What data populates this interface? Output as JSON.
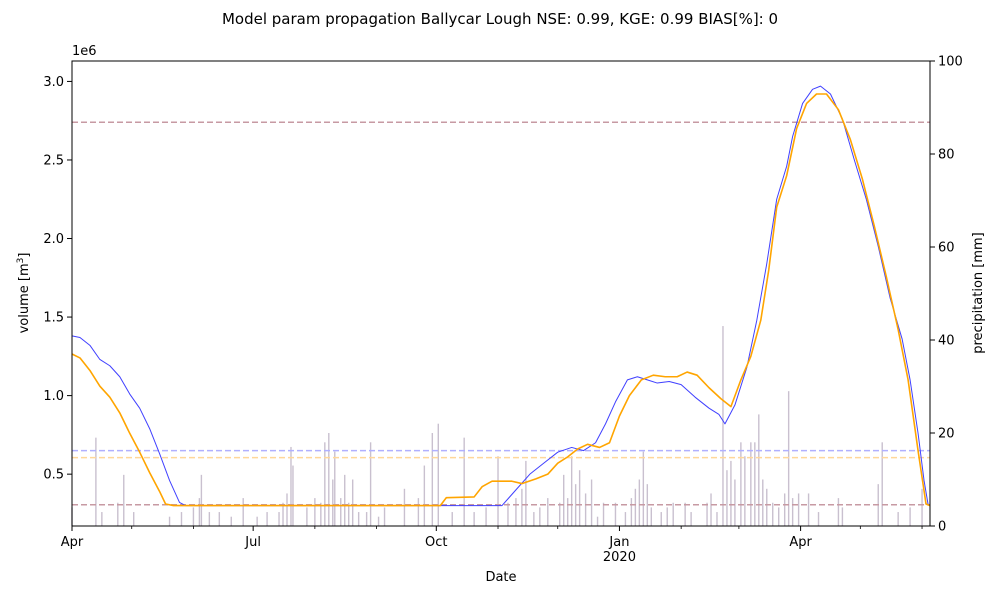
{
  "chart_data": {
    "type": "line",
    "title": "Model param propagation Ballycar Lough NSE: 0.99, KGE: 0.99 BIAS[%]: 0",
    "xlabel": "Date",
    "ylabel": "volume [m$^3$]",
    "ylabel_main": "volume [m",
    "ylabel_sup": "3",
    "ylabel_end": "]",
    "y_multiplier": "1e6",
    "y2label": "precipitation [mm]",
    "xlim": [
      "2019-04-01",
      "2020-06-05"
    ],
    "ylim": [
      170000,
      3130000
    ],
    "y2lim": [
      0,
      100
    ],
    "grid": false,
    "x_ticks": [
      {
        "date": "2019-04-01",
        "label": "Apr",
        "sub": ""
      },
      {
        "date": "2019-07-01",
        "label": "Jul",
        "sub": ""
      },
      {
        "date": "2019-10-01",
        "label": "Oct",
        "sub": ""
      },
      {
        "date": "2020-01-01",
        "label": "Jan",
        "sub": "2020"
      },
      {
        "date": "2020-04-01",
        "label": "Apr",
        "sub": ""
      }
    ],
    "y_ticks": [
      {
        "value": 500000,
        "label": "0.5"
      },
      {
        "value": 1000000,
        "label": "1.0"
      },
      {
        "value": 1500000,
        "label": "1.5"
      },
      {
        "value": 2000000,
        "label": "2.0"
      },
      {
        "value": 2500000,
        "label": "2.5"
      },
      {
        "value": 3000000,
        "label": "3.0"
      }
    ],
    "y2_ticks": [
      {
        "value": 0,
        "label": "0"
      },
      {
        "value": 20,
        "label": "20"
      },
      {
        "value": 40,
        "label": "40"
      },
      {
        "value": 60,
        "label": "60"
      },
      {
        "value": 80,
        "label": "80"
      },
      {
        "value": 100,
        "label": "100"
      }
    ],
    "series": [
      {
        "color": "#4040ff",
        "points": [
          [
            "2019-04-01",
            1380000
          ],
          [
            "2019-04-05",
            1370000
          ],
          [
            "2019-04-10",
            1320000
          ],
          [
            "2019-04-15",
            1230000
          ],
          [
            "2019-04-20",
            1190000
          ],
          [
            "2019-04-25",
            1120000
          ],
          [
            "2019-04-30",
            1010000
          ],
          [
            "2019-05-05",
            920000
          ],
          [
            "2019-05-10",
            790000
          ],
          [
            "2019-05-15",
            630000
          ],
          [
            "2019-05-20",
            460000
          ],
          [
            "2019-05-25",
            320000
          ],
          [
            "2019-05-28",
            300000
          ],
          [
            "2019-11-03",
            300000
          ],
          [
            "2019-11-10",
            400000
          ],
          [
            "2019-11-17",
            500000
          ],
          [
            "2019-11-24",
            570000
          ],
          [
            "2019-12-01",
            640000
          ],
          [
            "2019-12-08",
            670000
          ],
          [
            "2019-12-14",
            650000
          ],
          [
            "2019-12-20",
            700000
          ],
          [
            "2019-12-25",
            820000
          ],
          [
            "2019-12-30",
            960000
          ],
          [
            "2020-01-05",
            1100000
          ],
          [
            "2020-01-10",
            1120000
          ],
          [
            "2020-01-15",
            1100000
          ],
          [
            "2020-01-20",
            1080000
          ],
          [
            "2020-01-26",
            1090000
          ],
          [
            "2020-02-01",
            1070000
          ],
          [
            "2020-02-08",
            990000
          ],
          [
            "2020-02-15",
            920000
          ],
          [
            "2020-02-20",
            880000
          ],
          [
            "2020-02-23",
            820000
          ],
          [
            "2020-02-28",
            940000
          ],
          [
            "2020-03-05",
            1180000
          ],
          [
            "2020-03-10",
            1480000
          ],
          [
            "2020-03-15",
            1840000
          ],
          [
            "2020-03-20",
            2250000
          ],
          [
            "2020-03-25",
            2460000
          ],
          [
            "2020-03-28",
            2650000
          ],
          [
            "2020-04-02",
            2860000
          ],
          [
            "2020-04-07",
            2950000
          ],
          [
            "2020-04-11",
            2970000
          ],
          [
            "2020-04-16",
            2920000
          ],
          [
            "2020-04-22",
            2760000
          ],
          [
            "2020-04-28",
            2500000
          ],
          [
            "2020-05-04",
            2250000
          ],
          [
            "2020-05-10",
            1950000
          ],
          [
            "2020-05-16",
            1620000
          ],
          [
            "2020-05-22",
            1360000
          ],
          [
            "2020-05-26",
            1100000
          ],
          [
            "2020-05-30",
            760000
          ],
          [
            "2020-06-02",
            460000
          ],
          [
            "2020-06-04",
            310000
          ],
          [
            "2020-06-05",
            300000
          ]
        ]
      },
      {
        "color": "#ffa500",
        "points": [
          [
            "2019-04-01",
            1265000
          ],
          [
            "2019-04-05",
            1240000
          ],
          [
            "2019-04-10",
            1160000
          ],
          [
            "2019-04-15",
            1060000
          ],
          [
            "2019-04-20",
            990000
          ],
          [
            "2019-04-25",
            890000
          ],
          [
            "2019-04-30",
            760000
          ],
          [
            "2019-05-05",
            640000
          ],
          [
            "2019-05-10",
            510000
          ],
          [
            "2019-05-15",
            390000
          ],
          [
            "2019-05-18",
            310000
          ],
          [
            "2019-05-22",
            300000
          ],
          [
            "2019-10-03",
            300000
          ],
          [
            "2019-10-06",
            350000
          ],
          [
            "2019-10-20",
            355000
          ],
          [
            "2019-10-24",
            420000
          ],
          [
            "2019-10-29",
            455000
          ],
          [
            "2019-11-08",
            455000
          ],
          [
            "2019-11-13",
            440000
          ],
          [
            "2019-11-20",
            470000
          ],
          [
            "2019-11-26",
            500000
          ],
          [
            "2019-12-01",
            570000
          ],
          [
            "2019-12-06",
            610000
          ],
          [
            "2019-12-11",
            660000
          ],
          [
            "2019-12-16",
            690000
          ],
          [
            "2019-12-22",
            670000
          ],
          [
            "2019-12-27",
            700000
          ],
          [
            "2020-01-01",
            870000
          ],
          [
            "2020-01-06",
            1000000
          ],
          [
            "2020-01-12",
            1100000
          ],
          [
            "2020-01-18",
            1130000
          ],
          [
            "2020-01-24",
            1120000
          ],
          [
            "2020-01-30",
            1120000
          ],
          [
            "2020-02-04",
            1150000
          ],
          [
            "2020-02-09",
            1130000
          ],
          [
            "2020-02-15",
            1050000
          ],
          [
            "2020-02-21",
            980000
          ],
          [
            "2020-02-26",
            930000
          ],
          [
            "2020-03-02",
            1100000
          ],
          [
            "2020-03-07",
            1250000
          ],
          [
            "2020-03-12",
            1480000
          ],
          [
            "2020-03-16",
            1800000
          ],
          [
            "2020-03-20",
            2200000
          ],
          [
            "2020-03-25",
            2400000
          ],
          [
            "2020-03-30",
            2700000
          ],
          [
            "2020-04-04",
            2860000
          ],
          [
            "2020-04-09",
            2920000
          ],
          [
            "2020-04-14",
            2920000
          ],
          [
            "2020-04-20",
            2820000
          ],
          [
            "2020-04-26",
            2630000
          ],
          [
            "2020-05-02",
            2380000
          ],
          [
            "2020-05-08",
            2080000
          ],
          [
            "2020-05-14",
            1760000
          ],
          [
            "2020-05-20",
            1420000
          ],
          [
            "2020-05-25",
            1100000
          ],
          [
            "2020-05-30",
            650000
          ],
          [
            "2020-06-03",
            310000
          ],
          [
            "2020-06-05",
            300000
          ]
        ]
      }
    ],
    "hlines": [
      {
        "value": 2740000,
        "color": "#c79aa3"
      },
      {
        "value": 650000,
        "color": "#b0b0ff"
      },
      {
        "value": 605000,
        "color": "#ffd79a"
      },
      {
        "value": 305000,
        "color": "#c79aa3"
      }
    ],
    "precip_color": "#c9c0cf",
    "precip": [
      [
        "2019-04-01",
        4
      ],
      [
        "2019-04-13",
        19
      ],
      [
        "2019-04-16",
        3
      ],
      [
        "2019-04-24",
        5
      ],
      [
        "2019-04-27",
        11
      ],
      [
        "2019-05-02",
        3
      ],
      [
        "2019-05-20",
        2
      ],
      [
        "2019-05-26",
        3
      ],
      [
        "2019-06-01",
        4
      ],
      [
        "2019-06-04",
        6
      ],
      [
        "2019-06-05",
        11
      ],
      [
        "2019-06-09",
        3
      ],
      [
        "2019-06-14",
        3
      ],
      [
        "2019-06-20",
        2
      ],
      [
        "2019-06-26",
        6
      ],
      [
        "2019-07-03",
        2
      ],
      [
        "2019-07-08",
        3
      ],
      [
        "2019-07-14",
        3
      ],
      [
        "2019-07-16",
        5
      ],
      [
        "2019-07-18",
        7
      ],
      [
        "2019-07-20",
        17
      ],
      [
        "2019-07-21",
        13
      ],
      [
        "2019-07-28",
        4
      ],
      [
        "2019-08-01",
        6
      ],
      [
        "2019-08-04",
        5
      ],
      [
        "2019-08-06",
        18
      ],
      [
        "2019-08-08",
        20
      ],
      [
        "2019-08-10",
        10
      ],
      [
        "2019-08-11",
        16
      ],
      [
        "2019-08-14",
        6
      ],
      [
        "2019-08-16",
        11
      ],
      [
        "2019-08-18",
        5
      ],
      [
        "2019-08-20",
        10
      ],
      [
        "2019-08-23",
        3
      ],
      [
        "2019-08-27",
        3
      ],
      [
        "2019-08-29",
        18
      ],
      [
        "2019-09-02",
        2
      ],
      [
        "2019-09-05",
        4
      ],
      [
        "2019-09-15",
        8
      ],
      [
        "2019-09-22",
        6
      ],
      [
        "2019-09-25",
        13
      ],
      [
        "2019-09-29",
        20
      ],
      [
        "2019-10-02",
        22
      ],
      [
        "2019-10-09",
        3
      ],
      [
        "2019-10-15",
        19
      ],
      [
        "2019-10-20",
        3
      ],
      [
        "2019-10-26",
        4
      ],
      [
        "2019-11-01",
        15
      ],
      [
        "2019-11-06",
        5
      ],
      [
        "2019-11-10",
        6
      ],
      [
        "2019-11-13",
        8
      ],
      [
        "2019-11-15",
        14
      ],
      [
        "2019-11-19",
        3
      ],
      [
        "2019-11-22",
        4
      ],
      [
        "2019-11-26",
        6
      ],
      [
        "2019-12-02",
        5
      ],
      [
        "2019-12-04",
        11
      ],
      [
        "2019-12-06",
        6
      ],
      [
        "2019-12-08",
        15
      ],
      [
        "2019-12-10",
        9
      ],
      [
        "2019-12-12",
        12
      ],
      [
        "2019-12-15",
        7
      ],
      [
        "2019-12-18",
        10
      ],
      [
        "2019-12-21",
        2
      ],
      [
        "2019-12-24",
        5
      ],
      [
        "2019-12-30",
        5
      ],
      [
        "2020-01-04",
        3
      ],
      [
        "2020-01-07",
        6
      ],
      [
        "2020-01-09",
        8
      ],
      [
        "2020-01-11",
        10
      ],
      [
        "2020-01-13",
        16
      ],
      [
        "2020-01-15",
        9
      ],
      [
        "2020-01-17",
        4
      ],
      [
        "2020-01-22",
        3
      ],
      [
        "2020-01-25",
        4
      ],
      [
        "2020-01-28",
        5
      ],
      [
        "2020-02-03",
        5
      ],
      [
        "2020-02-06",
        3
      ],
      [
        "2020-02-14",
        5
      ],
      [
        "2020-02-16",
        7
      ],
      [
        "2020-02-19",
        3
      ],
      [
        "2020-02-22",
        43
      ],
      [
        "2020-02-24",
        12
      ],
      [
        "2020-02-26",
        14
      ],
      [
        "2020-02-28",
        10
      ],
      [
        "2020-03-02",
        18
      ],
      [
        "2020-03-04",
        15
      ],
      [
        "2020-03-07",
        18
      ],
      [
        "2020-03-09",
        18
      ],
      [
        "2020-03-11",
        24
      ],
      [
        "2020-03-13",
        10
      ],
      [
        "2020-03-15",
        8
      ],
      [
        "2020-03-18",
        5
      ],
      [
        "2020-03-21",
        4
      ],
      [
        "2020-03-24",
        7
      ],
      [
        "2020-03-26",
        29
      ],
      [
        "2020-03-28",
        6
      ],
      [
        "2020-03-31",
        7
      ],
      [
        "2020-04-05",
        7
      ],
      [
        "2020-04-10",
        3
      ],
      [
        "2020-04-20",
        6
      ],
      [
        "2020-04-22",
        4
      ],
      [
        "2020-05-10",
        9
      ],
      [
        "2020-05-12",
        18
      ],
      [
        "2020-05-20",
        3
      ],
      [
        "2020-05-26",
        4
      ],
      [
        "2020-06-01",
        8
      ]
    ]
  }
}
